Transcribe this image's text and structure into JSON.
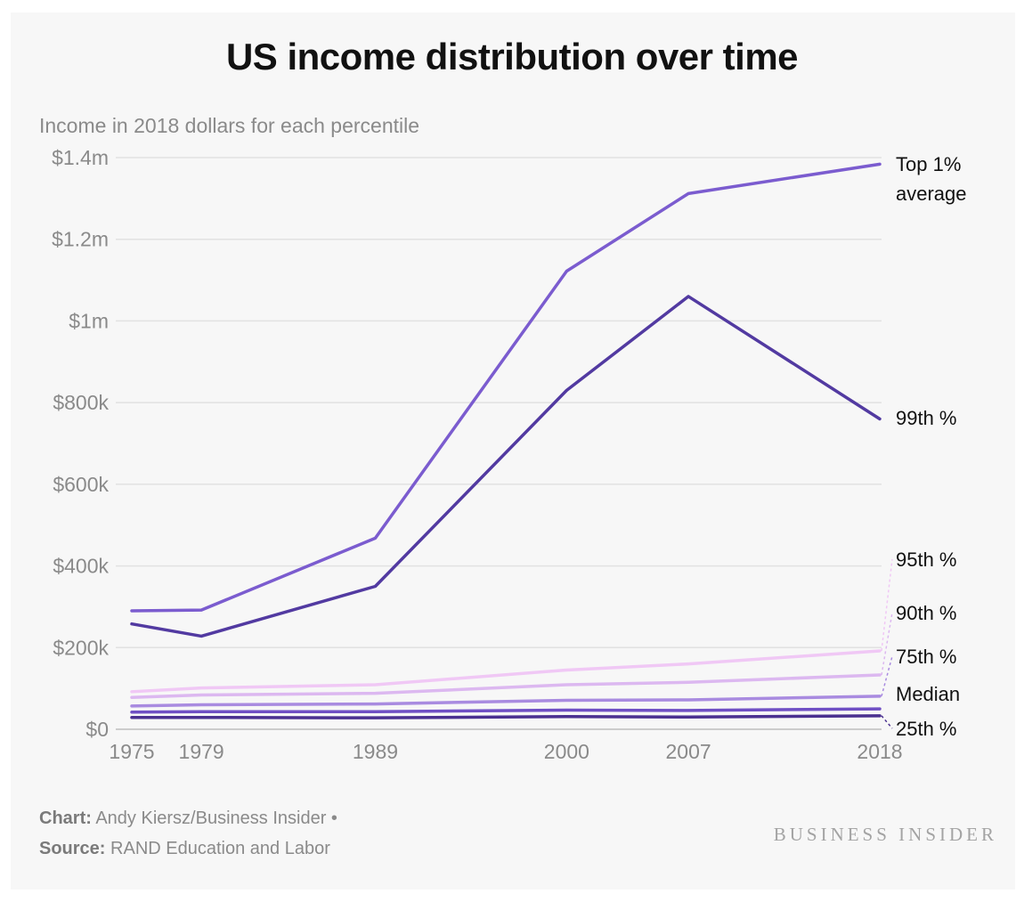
{
  "chart_data": {
    "type": "line",
    "title": "US income distribution over time",
    "subtitle": "Income in 2018 dollars for each percentile",
    "x": [
      1975,
      1979,
      1989,
      2000,
      2007,
      2018
    ],
    "x_tick_labels": [
      "1975",
      "1979",
      "1989",
      "2000",
      "2007",
      "2018"
    ],
    "y_ticks": [
      0,
      200000,
      400000,
      600000,
      800000,
      1000000,
      1200000,
      1400000
    ],
    "y_tick_labels": [
      "$0",
      "$200k",
      "$400k",
      "$600k",
      "$800k",
      "$1m",
      "$1.2m",
      "$1.4m"
    ],
    "ylim": [
      0,
      1400000
    ],
    "grid": true,
    "series": [
      {
        "name": "Top 1% average",
        "label_lines": [
          "Top 1%",
          "average"
        ],
        "color": "#7b5ccf",
        "values": [
          290000,
          292000,
          468000,
          1122000,
          1312000,
          1384000
        ]
      },
      {
        "name": "99th %",
        "label_lines": [
          "99th %"
        ],
        "color": "#523aa1",
        "values": [
          258000,
          228000,
          350000,
          830000,
          1060000,
          760000
        ]
      },
      {
        "name": "95th %",
        "label_lines": [
          "95th %"
        ],
        "color": "#f0c8f5",
        "values": [
          92000,
          101000,
          109000,
          145000,
          160000,
          192000
        ]
      },
      {
        "name": "90th %",
        "label_lines": [
          "90th %"
        ],
        "color": "#dcb8f0",
        "values": [
          78000,
          84000,
          88000,
          109000,
          115000,
          133000
        ]
      },
      {
        "name": "75th %",
        "label_lines": [
          "75th %"
        ],
        "color": "#a98be0",
        "values": [
          57000,
          60000,
          62000,
          71000,
          72000,
          81000
        ]
      },
      {
        "name": "Median",
        "label_lines": [
          "Median"
        ],
        "color": "#6f4fc4",
        "values": [
          42000,
          43000,
          43000,
          47000,
          46000,
          50000
        ]
      },
      {
        "name": "25th %",
        "label_lines": [
          "25th %"
        ],
        "color": "#4a3090",
        "values": [
          29000,
          29000,
          28000,
          31000,
          30000,
          33000
        ]
      }
    ]
  },
  "credits": {
    "chart_label": "Chart:",
    "chart_text": "Andy Kiersz/Business Insider •",
    "source_label": "Source:",
    "source_text": "RAND Education and Labor"
  },
  "brand": "BUSINESS INSIDER"
}
